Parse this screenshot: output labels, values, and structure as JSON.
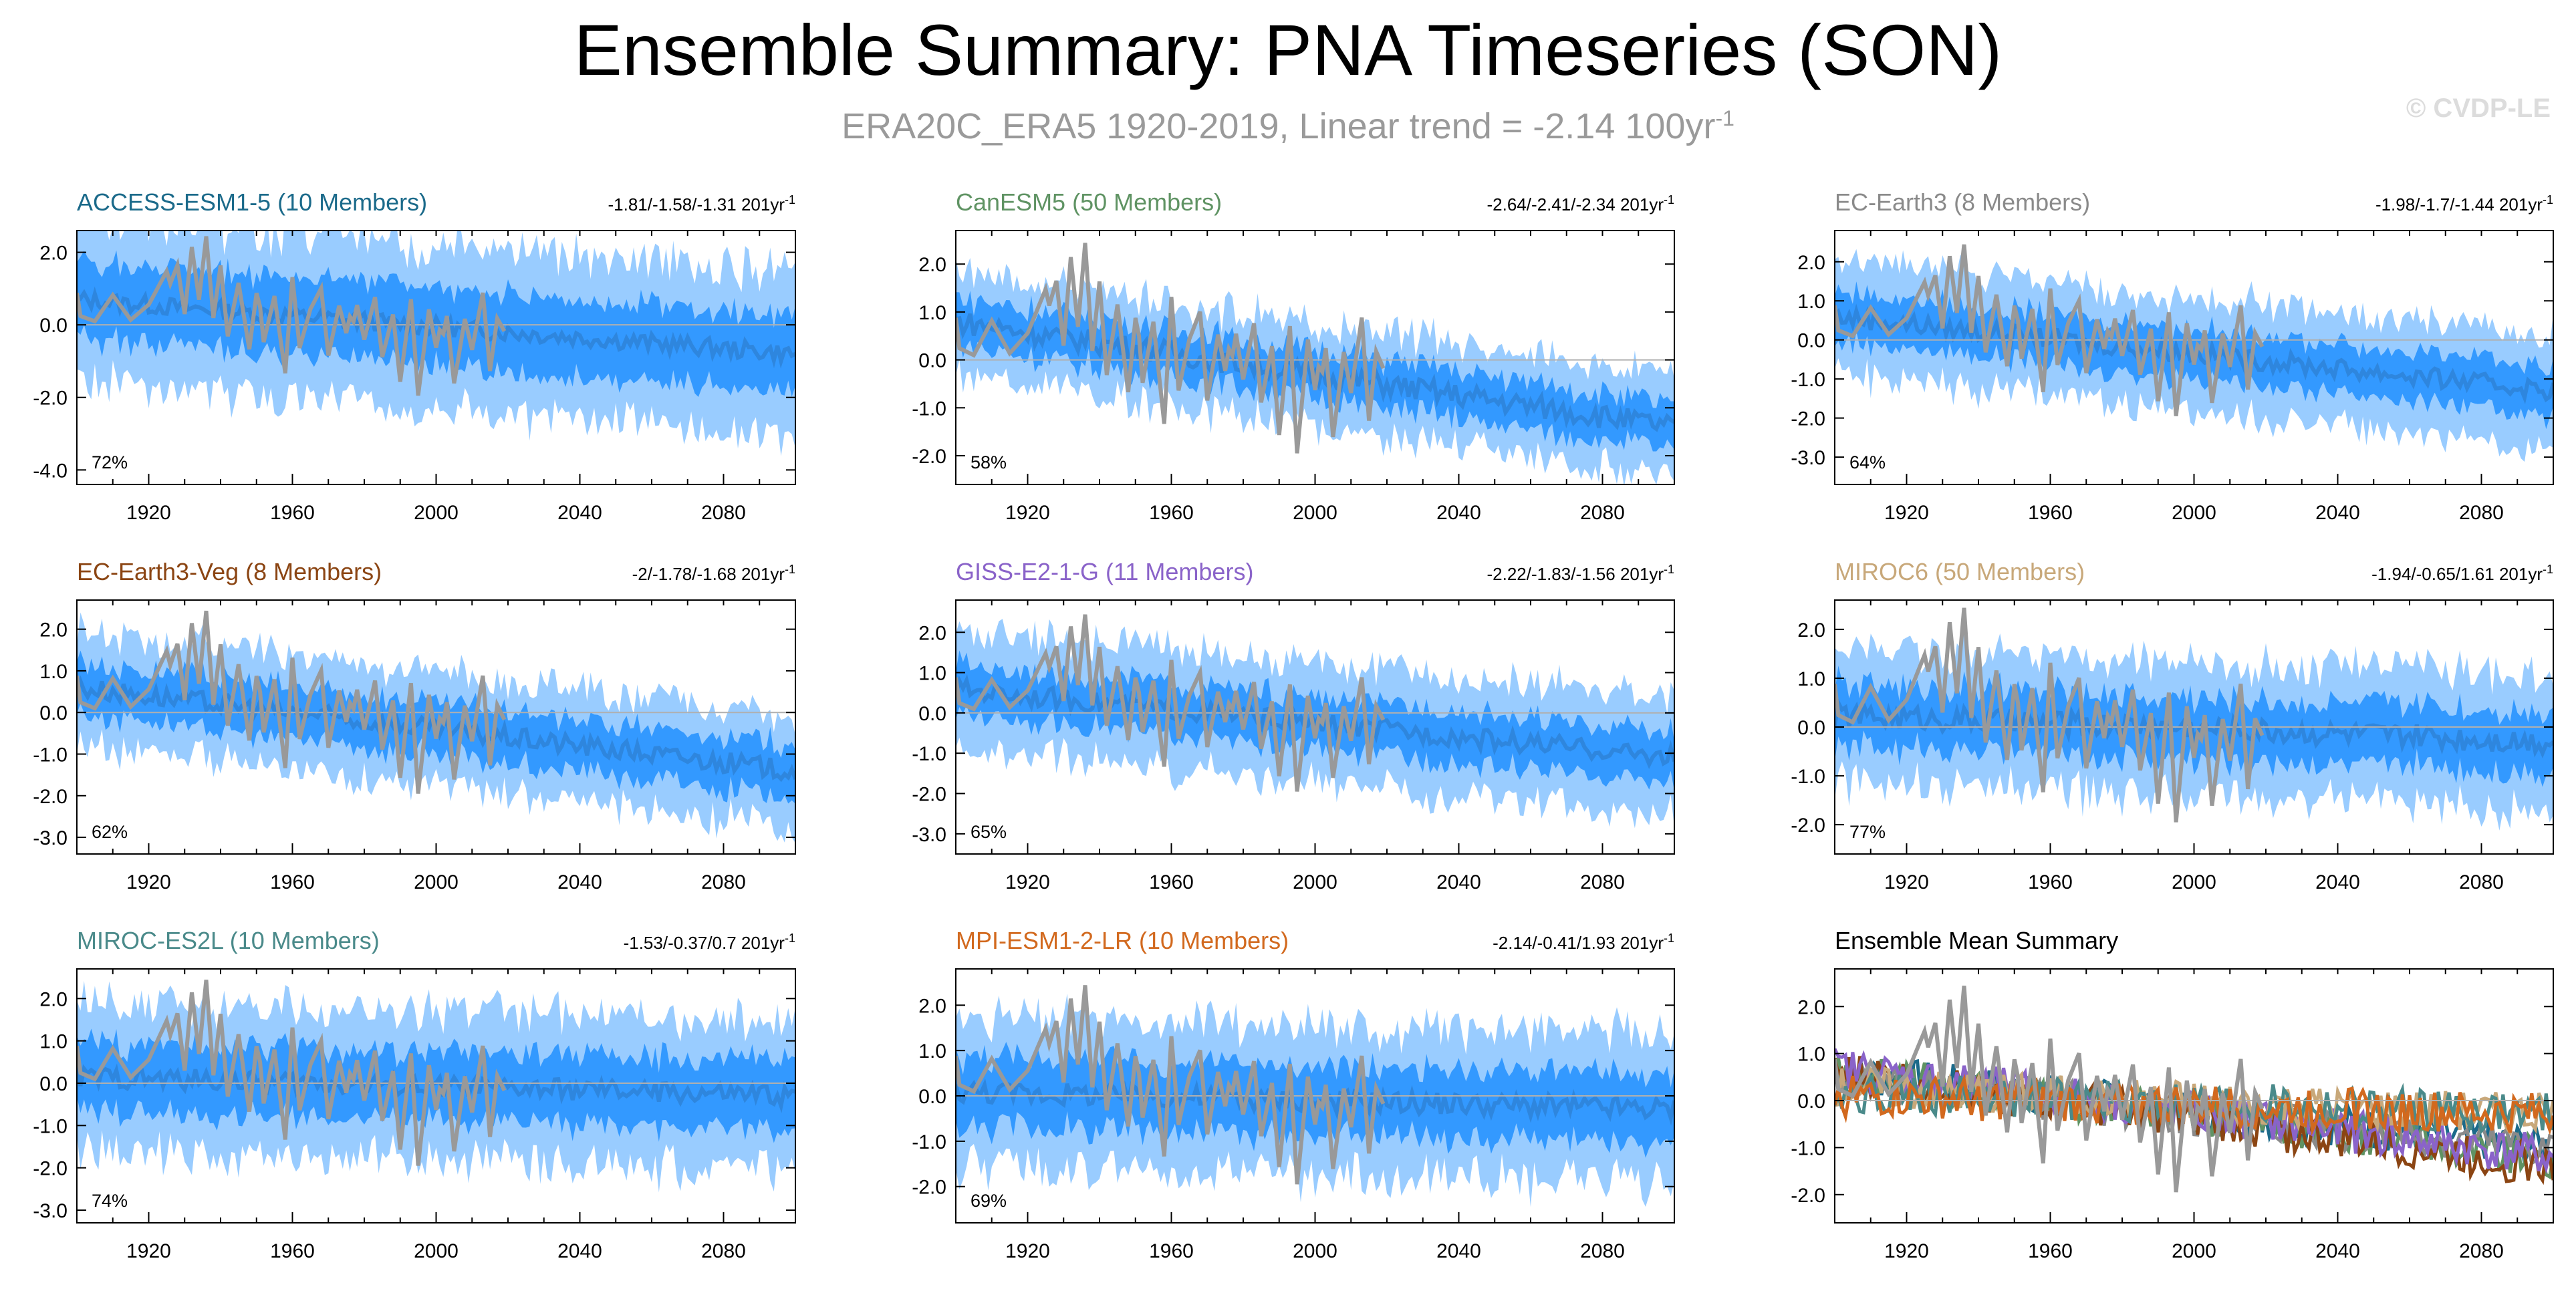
{
  "title": "Ensemble Summary: PNA Timeseries (SON)",
  "subtitle": "ERA20C_ERA5 1920-2019, Linear trend = -2.14 100yr",
  "subtitle_sup": "-1",
  "watermark": "© CVDP-LE",
  "colors": {
    "envelope_outer": "#99ccff",
    "envelope_inner": "#3399ff",
    "ensemble_mean": "#2e86de",
    "observations": "#999999",
    "axis": "#000000",
    "zero_line": "#b0b0b0"
  },
  "chart_data": [
    {
      "type": "line",
      "panel": "ACCESS-ESM1-5",
      "title": "ACCESS-ESM1-5 (10 Members)",
      "title_color": "#1b6a8a",
      "trend_label": "-1.81/-1.58/-1.31 201yr",
      "trend_sup": "-1",
      "pct_label": "72%",
      "xlim": [
        1900,
        2100
      ],
      "ylim": [
        -4.4,
        2.6
      ],
      "yticks": [
        2.0,
        0.0,
        -2.0,
        -4.0
      ],
      "xticks": [
        1920,
        1960,
        2000,
        2040,
        2080
      ],
      "mean_trend": [
        0.7,
        -0.8
      ],
      "env_inner": 1.2,
      "env_outer": 2.3
    },
    {
      "type": "line",
      "panel": "CanESM5",
      "title": "CanESM5 (50 Members)",
      "title_color": "#5f9363",
      "trend_label": "-2.64/-2.41/-2.34 201yr",
      "trend_sup": "-1",
      "pct_label": "58%",
      "xlim": [
        1900,
        2100
      ],
      "ylim": [
        -2.6,
        2.7
      ],
      "yticks": [
        2.0,
        1.0,
        0.0,
        -1.0,
        -2.0
      ],
      "xticks": [
        1920,
        1960,
        2000,
        2040,
        2080
      ],
      "mean_trend": [
        0.8,
        -1.4
      ],
      "env_inner": 0.55,
      "env_outer": 1.1
    },
    {
      "type": "line",
      "panel": "EC-Earth3",
      "title": "EC-Earth3 (8 Members)",
      "title_color": "#8a8a8a",
      "trend_label": "-1.98/-1.7/-1.44 201yr",
      "trend_sup": "-1",
      "pct_label": "64%",
      "xlim": [
        1900,
        2100
      ],
      "ylim": [
        -3.7,
        2.8
      ],
      "yticks": [
        2.0,
        1.0,
        0.0,
        -1.0,
        -2.0,
        -3.0
      ],
      "xticks": [
        1920,
        1960,
        2000,
        2040,
        2080
      ],
      "mean_trend": [
        0.6,
        -1.3
      ],
      "env_inner": 0.7,
      "env_outer": 1.5
    },
    {
      "type": "line",
      "panel": "EC-Earth3-Veg",
      "title": "EC-Earth3-Veg (8 Members)",
      "title_color": "#8b4513",
      "trend_label": "-2/-1.78/-1.68 201yr",
      "trend_sup": "-1",
      "pct_label": "62%",
      "xlim": [
        1900,
        2100
      ],
      "ylim": [
        -3.4,
        2.7
      ],
      "yticks": [
        2.0,
        1.0,
        0.0,
        -1.0,
        -2.0,
        -3.0
      ],
      "xticks": [
        1920,
        1960,
        2000,
        2040,
        2080
      ],
      "mean_trend": [
        0.6,
        -1.4
      ],
      "env_inner": 0.7,
      "env_outer": 1.4
    },
    {
      "type": "line",
      "panel": "GISS-E2-1-G",
      "title": "GISS-E2-1-G (11 Members)",
      "title_color": "#8a63c9",
      "trend_label": "-2.22/-1.83/-1.56 201yr",
      "trend_sup": "-1",
      "pct_label": "65%",
      "xlim": [
        1900,
        2100
      ],
      "ylim": [
        -3.5,
        2.8
      ],
      "yticks": [
        2.0,
        1.0,
        0.0,
        -1.0,
        -2.0,
        -3.0
      ],
      "xticks": [
        1920,
        1960,
        2000,
        2040,
        2080
      ],
      "mean_trend": [
        0.6,
        -1.1
      ],
      "env_inner": 0.7,
      "env_outer": 1.5
    },
    {
      "type": "line",
      "panel": "MIROC6",
      "title": "MIROC6 (50 Members)",
      "title_color": "#c8a87a",
      "trend_label": "-1.94/-0.65/1.61 201yr",
      "trend_sup": "-1",
      "pct_label": "77%",
      "xlim": [
        1900,
        2100
      ],
      "ylim": [
        -2.6,
        2.6
      ],
      "yticks": [
        2.0,
        1.0,
        0.0,
        -1.0,
        -2.0
      ],
      "xticks": [
        1920,
        1960,
        2000,
        2040,
        2080
      ],
      "mean_trend": [
        0.25,
        -0.3
      ],
      "env_inner": 0.7,
      "env_outer": 1.4
    },
    {
      "type": "line",
      "panel": "MIROC-ES2L",
      "title": "MIROC-ES2L (10 Members)",
      "title_color": "#4a8a8a",
      "trend_label": "-1.53/-0.37/0.7 201yr",
      "trend_sup": "-1",
      "pct_label": "74%",
      "xlim": [
        1900,
        2100
      ],
      "ylim": [
        -3.3,
        2.7
      ],
      "yticks": [
        2.0,
        1.0,
        0.0,
        -1.0,
        -2.0,
        -3.0
      ],
      "xticks": [
        1920,
        1960,
        2000,
        2040,
        2080
      ],
      "mean_trend": [
        0.15,
        -0.3
      ],
      "env_inner": 0.9,
      "env_outer": 1.8
    },
    {
      "type": "line",
      "panel": "MPI-ESM1-2-LR",
      "title": "MPI-ESM1-2-LR (10 Members)",
      "title_color": "#d2691e",
      "trend_label": "-2.14/-0.41/1.93 201yr",
      "trend_sup": "-1",
      "pct_label": "69%",
      "xlim": [
        1900,
        2100
      ],
      "ylim": [
        -2.8,
        2.8
      ],
      "yticks": [
        2.0,
        1.0,
        0.0,
        -1.0,
        -2.0
      ],
      "xticks": [
        1920,
        1960,
        2000,
        2040,
        2080
      ],
      "mean_trend": [
        0.1,
        -0.3
      ],
      "env_inner": 0.85,
      "env_outer": 1.7
    },
    {
      "type": "line",
      "panel": "Ensemble Mean Summary",
      "title": "Ensemble Mean Summary",
      "title_color": "#000000",
      "trend_label": "",
      "trend_sup": "",
      "pct_label": "",
      "xlim": [
        1900,
        2100
      ],
      "ylim": [
        -2.6,
        2.8
      ],
      "yticks": [
        2.0,
        1.0,
        0.0,
        -1.0,
        -2.0
      ],
      "xticks": [
        1920,
        1960,
        2000,
        2040,
        2080
      ],
      "summary": true,
      "series": [
        {
          "color": "#1b6a8a",
          "trend": [
            0.6,
            -1.0
          ]
        },
        {
          "color": "#5f9363",
          "trend": [
            0.6,
            -1.2
          ]
        },
        {
          "color": "#8a8a8a",
          "trend": [
            0.5,
            -1.1
          ]
        },
        {
          "color": "#8b4513",
          "trend": [
            0.6,
            -1.4
          ]
        },
        {
          "color": "#8a63c9",
          "trend": [
            0.7,
            -1.2
          ]
        },
        {
          "color": "#c8a87a",
          "trend": [
            0.3,
            -0.3
          ]
        },
        {
          "color": "#4a8a8a",
          "trend": [
            0.2,
            -0.3
          ]
        },
        {
          "color": "#d2691e",
          "trend": [
            0.1,
            -0.3
          ]
        }
      ]
    }
  ],
  "observations": {
    "label": "ERA20C_ERA5",
    "years": [
      1900,
      1905,
      1910,
      1915,
      1920,
      1925,
      1928,
      1930,
      1932,
      1934,
      1936,
      1938,
      1940,
      1942,
      1945,
      1948,
      1950,
      1952,
      1955,
      1958,
      1960,
      1962,
      1965,
      1968,
      1970,
      1973,
      1975,
      1978,
      1980,
      1983,
      1985,
      1988,
      1990,
      1993,
      1995,
      1998,
      2000,
      2003,
      2005,
      2008,
      2010,
      2013,
      2015,
      2017,
      2019
    ],
    "values": [
      0.6,
      0.3,
      0.9,
      0.1,
      0.4,
      1.2,
      1.9,
      0.5,
      2.3,
      0.8,
      2.5,
      0.2,
      1.6,
      -0.4,
      1.0,
      -0.9,
      0.6,
      -0.2,
      1.0,
      -1.2,
      1.4,
      -0.6,
      0.4,
      0.9,
      -1.0,
      0.3,
      -0.5,
      0.8,
      -0.2,
      0.9,
      -0.8,
      0.3,
      -1.6,
      0.6,
      -2.1,
      0.2,
      -0.9,
      0.5,
      -1.4,
      0.3,
      -0.6,
      0.9,
      -1.3,
      0.1,
      -0.3
    ]
  }
}
